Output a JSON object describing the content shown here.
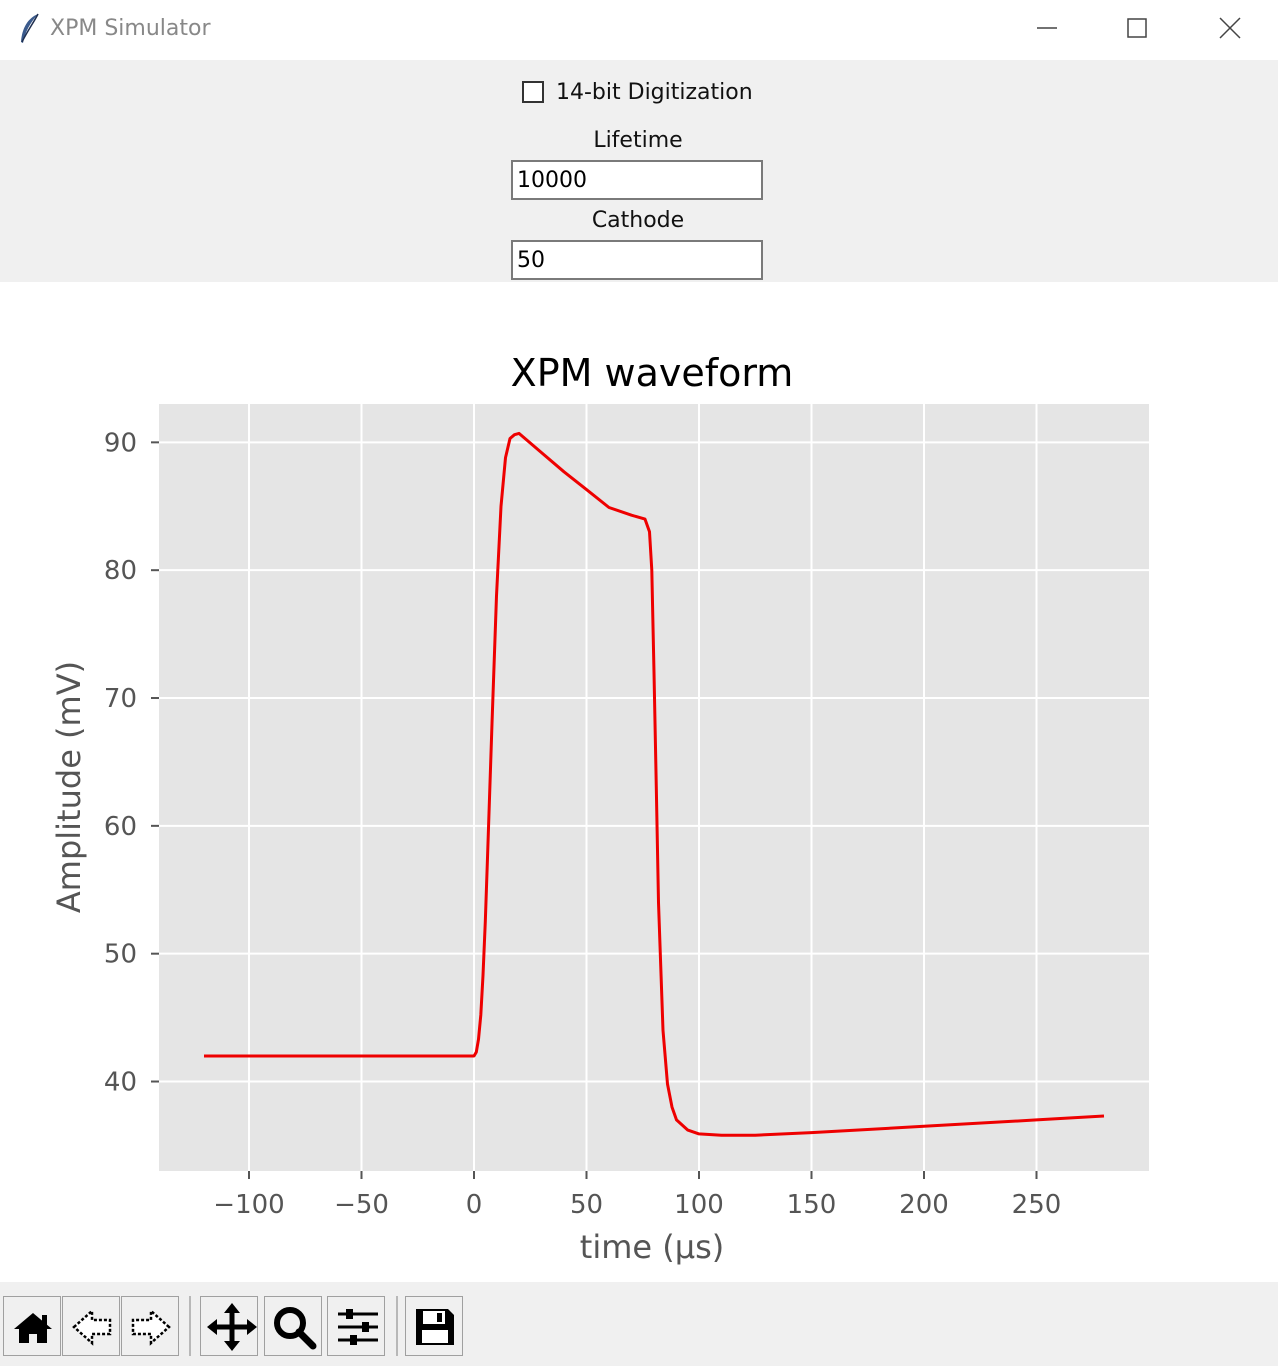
{
  "window": {
    "title": "XPM Simulator",
    "icon": "feather-icon"
  },
  "controls": {
    "digitization_label": "14-bit Digitization",
    "digitization_checked": false,
    "lifetime_label": "Lifetime",
    "lifetime_value": "10000",
    "cathode_label": "Cathode",
    "cathode_value": "50"
  },
  "chart_data": {
    "type": "line",
    "title": "XPM waveform",
    "xlabel": "time (μs)",
    "ylabel": "Amplitude (mV)",
    "xlim": [
      -140,
      300
    ],
    "ylim": [
      33,
      93
    ],
    "xticks": [
      -100,
      -50,
      0,
      50,
      100,
      150,
      200,
      250
    ],
    "xtick_labels": [
      "−100",
      "−50",
      "0",
      "50",
      "100",
      "150",
      "200",
      "250"
    ],
    "yticks": [
      40,
      50,
      60,
      70,
      80,
      90
    ],
    "ytick_labels": [
      "40",
      "50",
      "60",
      "70",
      "80",
      "90"
    ],
    "grid": true,
    "style": "ggplot",
    "series": [
      {
        "color": "#ee0000",
        "x": [
          -120,
          -60,
          0,
          1,
          2,
          3,
          4,
          5,
          6,
          8,
          10,
          12,
          14,
          16,
          18,
          20,
          30,
          40,
          50,
          60,
          70,
          76,
          78,
          79,
          80,
          81,
          82,
          84,
          86,
          88,
          90,
          95,
          100,
          110,
          125,
          150,
          200,
          250,
          280
        ],
        "y": [
          42.0,
          42.0,
          42.0,
          42.3,
          43.3,
          45.2,
          48.3,
          52.5,
          57.5,
          68.0,
          78.0,
          85.0,
          88.8,
          90.3,
          90.6,
          90.7,
          89.2,
          87.7,
          86.3,
          84.9,
          84.3,
          84.0,
          83.0,
          80.0,
          72.0,
          63.0,
          54.0,
          44.0,
          39.8,
          38.0,
          37.0,
          36.2,
          35.9,
          35.8,
          35.8,
          36.0,
          36.5,
          37.0,
          37.3
        ]
      }
    ]
  },
  "toolbar": {
    "buttons": [
      {
        "name": "home-icon",
        "label": "Home"
      },
      {
        "name": "back-arrow-icon",
        "label": "Back"
      },
      {
        "name": "forward-arrow-icon",
        "label": "Forward"
      },
      {
        "name": "pan-move-icon",
        "label": "Pan"
      },
      {
        "name": "zoom-magnifier-icon",
        "label": "Zoom"
      },
      {
        "name": "configure-sliders-icon",
        "label": "Configure subplots"
      },
      {
        "name": "save-floppy-icon",
        "label": "Save"
      }
    ]
  }
}
